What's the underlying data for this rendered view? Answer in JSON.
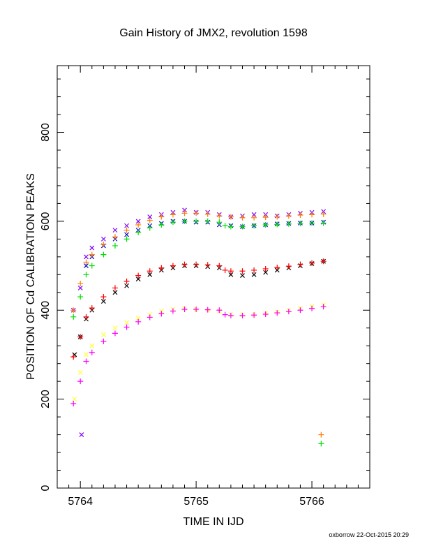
{
  "chart_data": {
    "type": "scatter",
    "title": "Gain History of JMX2, revolution 1598",
    "xlabel": "TIME IN IJD",
    "ylabel": "POSITION OF Cd CALIBRATION PEAKS",
    "credit": "oxborrow 22-Oct-2015 20:29",
    "xlim": [
      5763.8,
      5766.5
    ],
    "ylim": [
      0,
      950
    ],
    "xticks": [
      5764,
      5765,
      5766
    ],
    "yticks": [
      0,
      200,
      400,
      600,
      800
    ],
    "grid": false,
    "legend": "none",
    "series": [
      {
        "color": "#7f00ff",
        "marker": "x",
        "x": [
          5763.94,
          5764.0,
          5764.05,
          5764.1,
          5764.2,
          5764.3,
          5764.4,
          5764.5,
          5764.6,
          5764.7,
          5764.8,
          5764.9,
          5765.0,
          5765.1,
          5765.2,
          5765.3,
          5765.4,
          5765.5,
          5765.6,
          5765.7,
          5765.8,
          5765.9,
          5766.0,
          5766.1
        ],
        "y": [
          400,
          450,
          520,
          540,
          560,
          580,
          590,
          600,
          610,
          615,
          620,
          625,
          620,
          620,
          615,
          610,
          612,
          615,
          615,
          612,
          615,
          618,
          620,
          622
        ]
      },
      {
        "color": "#0000cc",
        "marker": "x",
        "x": [
          5764.05,
          5764.1,
          5764.2,
          5764.3,
          5764.4,
          5764.5,
          5764.6,
          5764.7,
          5764.8,
          5764.9,
          5765.0,
          5765.1,
          5765.2,
          5765.3,
          5765.4,
          5765.5,
          5765.6,
          5765.7,
          5765.8,
          5765.9,
          5766.0,
          5766.1
        ],
        "y": [
          500,
          520,
          545,
          560,
          570,
          580,
          590,
          595,
          600,
          600,
          598,
          598,
          592,
          590,
          588,
          590,
          592,
          594,
          595,
          596,
          596,
          598
        ]
      },
      {
        "color": "#ff7f00",
        "marker": "+",
        "x": [
          5763.94,
          5764.0,
          5764.05,
          5764.1,
          5764.2,
          5764.3,
          5764.4,
          5764.5,
          5764.6,
          5764.7,
          5764.8,
          5764.9,
          5765.0,
          5765.1,
          5765.2,
          5765.3,
          5765.4,
          5765.5,
          5765.6,
          5765.7,
          5765.8,
          5765.9,
          5766.0,
          5766.1
        ],
        "y": [
          400,
          460,
          508,
          525,
          548,
          565,
          580,
          592,
          602,
          610,
          615,
          618,
          618,
          616,
          612,
          610,
          608,
          608,
          609,
          610,
          612,
          614,
          615,
          616
        ]
      },
      {
        "color": "#00dd00",
        "marker": "+",
        "x": [
          5763.94,
          5764.0,
          5764.05,
          5764.1,
          5764.2,
          5764.3,
          5764.4,
          5764.5,
          5764.6,
          5764.7,
          5764.8,
          5764.9,
          5765.0,
          5765.1,
          5765.2,
          5765.25,
          5765.3,
          5765.4,
          5765.5,
          5765.6,
          5765.7,
          5765.8,
          5765.9,
          5766.0,
          5766.1
        ],
        "y": [
          385,
          430,
          480,
          500,
          525,
          545,
          560,
          575,
          585,
          592,
          598,
          600,
          600,
          600,
          598,
          590,
          588,
          588,
          590,
          592,
          593,
          594,
          595,
          596,
          596
        ]
      },
      {
        "color": "#000000",
        "marker": "x",
        "x": [
          5763.95,
          5764.0,
          5764.05,
          5764.1,
          5764.2,
          5764.3,
          5764.4,
          5764.5,
          5764.6,
          5764.7,
          5764.8,
          5764.9,
          5765.0,
          5765.1,
          5765.2,
          5765.3,
          5765.4,
          5765.5,
          5765.6,
          5765.7,
          5765.8,
          5765.9,
          5766.0,
          5766.1
        ],
        "y": [
          300,
          340,
          380,
          400,
          420,
          440,
          455,
          470,
          480,
          490,
          495,
          500,
          500,
          498,
          495,
          480,
          478,
          480,
          485,
          490,
          495,
          500,
          505,
          510
        ]
      },
      {
        "color": "#ff0000",
        "marker": "+",
        "x": [
          5763.94,
          5764.0,
          5764.05,
          5764.1,
          5764.2,
          5764.3,
          5764.4,
          5764.5,
          5764.6,
          5764.7,
          5764.8,
          5764.9,
          5765.0,
          5765.1,
          5765.2,
          5765.25,
          5765.3,
          5765.4,
          5765.5,
          5765.6,
          5765.7,
          5765.8,
          5765.9,
          5766.0,
          5766.1
        ],
        "y": [
          295,
          340,
          385,
          405,
          430,
          450,
          465,
          478,
          488,
          495,
          500,
          503,
          503,
          502,
          500,
          490,
          488,
          488,
          490,
          493,
          496,
          499,
          503,
          506,
          510
        ]
      },
      {
        "color": "#ffff33",
        "marker": "x",
        "x": [
          5763.95,
          5764.0,
          5764.05,
          5764.1,
          5764.2,
          5764.3,
          5764.4,
          5764.5,
          5764.6,
          5764.7,
          5764.8,
          5764.9,
          5765.0,
          5765.1,
          5765.2,
          5765.3,
          5765.4,
          5765.5,
          5765.6,
          5765.7,
          5765.8,
          5765.9,
          5766.0,
          5766.1
        ],
        "y": [
          200,
          260,
          300,
          320,
          345,
          360,
          372,
          382,
          390,
          398,
          402,
          404,
          402,
          400,
          398,
          390,
          390,
          390,
          393,
          396,
          400,
          404,
          408,
          412
        ]
      },
      {
        "color": "#ff00ff",
        "marker": "+",
        "x": [
          5763.94,
          5764.0,
          5764.05,
          5764.1,
          5764.2,
          5764.3,
          5764.4,
          5764.5,
          5764.6,
          5764.7,
          5764.8,
          5764.9,
          5765.0,
          5765.1,
          5765.2,
          5765.25,
          5765.3,
          5765.4,
          5765.5,
          5765.6,
          5765.7,
          5765.8,
          5765.9,
          5766.0,
          5766.1
        ],
        "y": [
          190,
          240,
          285,
          305,
          330,
          348,
          362,
          374,
          384,
          392,
          398,
          402,
          402,
          401,
          400,
          390,
          388,
          388,
          389,
          391,
          394,
          397,
          400,
          404,
          408
        ]
      },
      {
        "color": "#7f00ff",
        "marker": "x",
        "x": [
          5764.01
        ],
        "y": [
          120
        ]
      },
      {
        "color": "#ff7f00",
        "marker": "+",
        "x": [
          5766.08
        ],
        "y": [
          120
        ]
      },
      {
        "color": "#00dd00",
        "marker": "+",
        "x": [
          5766.08
        ],
        "y": [
          100
        ]
      }
    ]
  }
}
